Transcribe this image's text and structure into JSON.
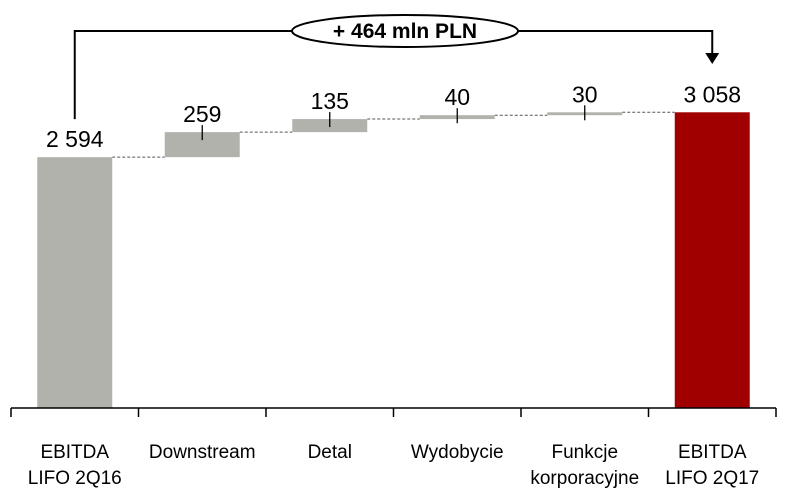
{
  "chart_data": {
    "type": "bar",
    "subtype": "waterfall",
    "categories": [
      "EBITDA\nLIFO 2Q16",
      "Downstream",
      "Detal",
      "Wydobycie",
      "Funkcje\nkorporacyjne",
      "EBITDA\nLIFO 2Q17"
    ],
    "values": [
      2594,
      259,
      135,
      40,
      30,
      3058
    ],
    "value_labels": [
      "2 594",
      "259",
      "135",
      "40",
      "30",
      "3 058"
    ],
    "bar_kinds": [
      "total",
      "delta",
      "delta",
      "delta",
      "delta",
      "total"
    ],
    "annotation": "+ 464 mln PLN",
    "ylim": [
      0,
      3500
    ],
    "grid": false,
    "colors": {
      "total_start": "#B2B2AD",
      "delta": "#B2B2AD",
      "total_end": "#A00000",
      "connector": "#555555",
      "axis": "#000000"
    }
  }
}
